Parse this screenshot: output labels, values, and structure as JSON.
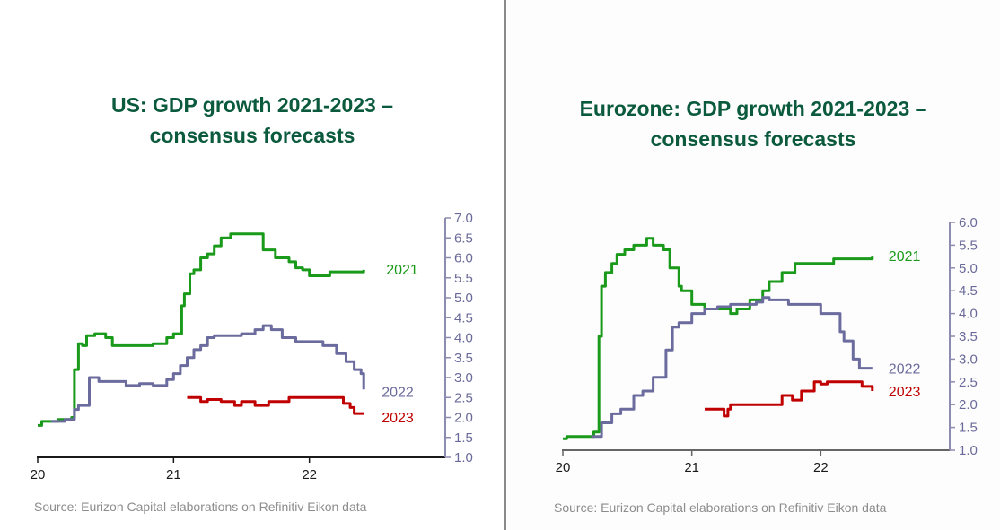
{
  "chart_data": [
    {
      "type": "line",
      "title": "US: GDP growth 2021-2023 – consensus forecasts",
      "title_lines": [
        "US: GDP growth 2021-2023 –",
        "consensus forecasts"
      ],
      "source": "Source: Eurizon Capital elaborations on Refinitiv Eikon data",
      "xlabel": "",
      "ylabel": "",
      "xlim": [
        20,
        23
      ],
      "ylim": [
        1.0,
        7.0
      ],
      "x_ticks": [
        20,
        21,
        22
      ],
      "x_tick_labels": [
        "20",
        "21",
        "22"
      ],
      "y_ticks": [
        1.0,
        1.5,
        2.0,
        2.5,
        3.0,
        3.5,
        4.0,
        4.5,
        5.0,
        5.5,
        6.0,
        6.5,
        7.0
      ],
      "y_tick_labels": [
        "1.0",
        "1.5",
        "2.0",
        "2.5",
        "3.0",
        "3.5",
        "4.0",
        "4.5",
        "5.0",
        "5.5",
        "6.0",
        "6.5",
        "7.0"
      ],
      "y_axis_position": "right",
      "grid": false,
      "legend": "inline-right",
      "series": [
        {
          "name": "2021",
          "color": "#1a9a1a",
          "x": [
            20.0,
            20.03,
            20.12,
            20.15,
            20.25,
            20.27,
            20.3,
            20.33,
            20.36,
            20.42,
            20.5,
            20.55,
            20.65,
            20.75,
            20.85,
            20.95,
            21.0,
            21.06,
            21.08,
            21.12,
            21.15,
            21.2,
            21.25,
            21.3,
            21.35,
            21.42,
            21.63,
            21.66,
            21.75,
            21.85,
            21.9,
            21.95,
            22.0,
            22.1,
            22.15,
            22.4
          ],
          "values": [
            1.8,
            1.9,
            1.9,
            1.95,
            2.0,
            3.2,
            3.85,
            3.8,
            4.05,
            4.1,
            4.0,
            3.8,
            3.8,
            3.8,
            3.85,
            4.0,
            4.1,
            4.8,
            5.1,
            5.6,
            5.7,
            6.0,
            6.1,
            6.3,
            6.5,
            6.6,
            6.6,
            6.2,
            6.0,
            5.9,
            5.75,
            5.7,
            5.55,
            5.55,
            5.65,
            5.7
          ]
        },
        {
          "name": "2022",
          "color": "#6b6b9e",
          "x": [
            20.1,
            20.2,
            20.27,
            20.3,
            20.38,
            20.45,
            20.55,
            20.65,
            20.75,
            20.85,
            20.95,
            21.0,
            21.05,
            21.1,
            21.15,
            21.2,
            21.25,
            21.3,
            21.5,
            21.6,
            21.66,
            21.72,
            21.8,
            21.9,
            22.0,
            22.1,
            22.2,
            22.27,
            22.33,
            22.38,
            22.4
          ],
          "values": [
            1.9,
            1.95,
            2.2,
            2.3,
            3.0,
            2.9,
            2.9,
            2.8,
            2.85,
            2.8,
            2.95,
            3.1,
            3.3,
            3.5,
            3.7,
            3.8,
            4.0,
            4.05,
            4.1,
            4.2,
            4.3,
            4.2,
            4.0,
            3.9,
            3.9,
            3.8,
            3.6,
            3.4,
            3.2,
            3.1,
            2.7
          ]
        },
        {
          "name": "2023",
          "color": "#c00000",
          "x": [
            21.1,
            21.17,
            21.2,
            21.25,
            21.35,
            21.45,
            21.5,
            21.6,
            21.7,
            21.85,
            22.1,
            22.2,
            22.25,
            22.3,
            22.33,
            22.4
          ],
          "values": [
            2.5,
            2.5,
            2.4,
            2.45,
            2.4,
            2.3,
            2.4,
            2.3,
            2.4,
            2.5,
            2.5,
            2.5,
            2.35,
            2.25,
            2.1,
            2.1
          ]
        }
      ]
    },
    {
      "type": "line",
      "title": "Eurozone: GDP growth 2021-2023 – consensus forecasts",
      "title_lines": [
        "Eurozone: GDP growth 2021-2023 –",
        "consensus forecasts"
      ],
      "source": "Source: Eurizon Capital elaborations on Refinitiv Eikon data",
      "xlabel": "",
      "ylabel": "",
      "xlim": [
        20,
        23
      ],
      "ylim": [
        1.0,
        6.0
      ],
      "x_ticks": [
        20,
        21,
        22
      ],
      "x_tick_labels": [
        "20",
        "21",
        "22"
      ],
      "y_ticks": [
        1.0,
        1.5,
        2.0,
        2.5,
        3.0,
        3.5,
        4.0,
        4.5,
        5.0,
        5.5,
        6.0
      ],
      "y_tick_labels": [
        "1.0",
        "1.5",
        "2.0",
        "2.5",
        "3.0",
        "3.5",
        "4.0",
        "4.5",
        "5.0",
        "5.5",
        "6.0"
      ],
      "y_axis_position": "right",
      "grid": false,
      "legend": "inline-right",
      "series": [
        {
          "name": "2021",
          "color": "#1a9a1a",
          "x": [
            20.0,
            20.03,
            20.2,
            20.24,
            20.28,
            20.3,
            20.33,
            20.38,
            20.42,
            20.48,
            20.55,
            20.6,
            20.65,
            20.7,
            20.78,
            20.83,
            20.9,
            20.92,
            20.97,
            21.0,
            21.1,
            21.2,
            21.3,
            21.35,
            21.45,
            21.55,
            21.6,
            21.7,
            21.8,
            22.0,
            22.1,
            22.2,
            22.4
          ],
          "values": [
            1.25,
            1.3,
            1.3,
            1.4,
            3.5,
            4.6,
            4.9,
            5.1,
            5.3,
            5.4,
            5.5,
            5.5,
            5.65,
            5.5,
            5.4,
            5.0,
            4.6,
            4.5,
            4.5,
            4.2,
            4.1,
            4.1,
            4.0,
            4.1,
            4.3,
            4.5,
            4.7,
            4.9,
            5.1,
            5.1,
            5.2,
            5.2,
            5.25
          ]
        },
        {
          "name": "2022",
          "color": "#6b6b9e",
          "x": [
            20.22,
            20.3,
            20.38,
            20.45,
            20.55,
            20.62,
            20.7,
            20.75,
            20.8,
            20.85,
            20.9,
            21.0,
            21.1,
            21.2,
            21.3,
            21.5,
            21.55,
            21.6,
            21.75,
            21.85,
            22.0,
            22.1,
            22.15,
            22.18,
            22.25,
            22.3,
            22.4
          ],
          "values": [
            1.3,
            1.6,
            1.8,
            1.9,
            2.2,
            2.3,
            2.6,
            2.6,
            3.2,
            3.7,
            3.8,
            4.0,
            4.1,
            4.15,
            4.2,
            4.25,
            4.35,
            4.3,
            4.2,
            4.2,
            4.0,
            4.0,
            3.6,
            3.4,
            3.0,
            2.8,
            2.8
          ]
        },
        {
          "name": "2023",
          "color": "#c00000",
          "x": [
            21.1,
            21.2,
            21.25,
            21.28,
            21.3,
            21.5,
            21.65,
            21.7,
            21.78,
            21.85,
            21.95,
            22.0,
            22.05,
            22.2,
            22.32,
            22.38,
            22.4
          ],
          "values": [
            1.9,
            1.9,
            1.75,
            1.9,
            2.0,
            2.0,
            2.0,
            2.2,
            2.1,
            2.3,
            2.5,
            2.45,
            2.5,
            2.5,
            2.4,
            2.4,
            2.3
          ]
        }
      ]
    }
  ]
}
